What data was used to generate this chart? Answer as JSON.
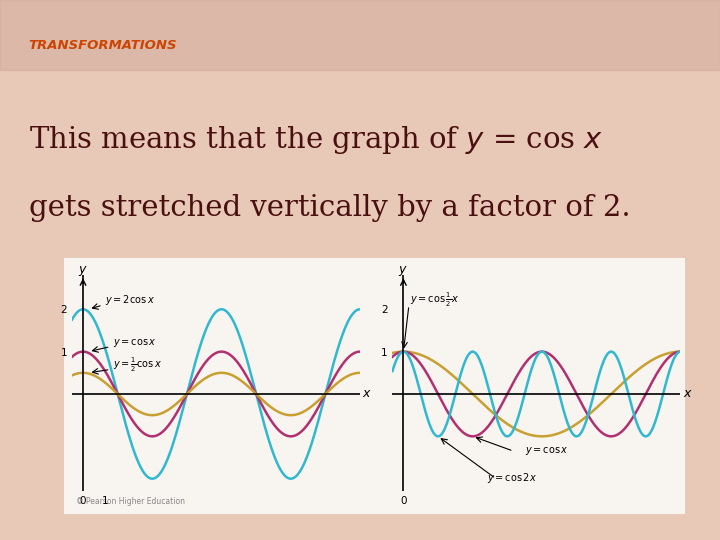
{
  "title": "TRANSFORMATIONS",
  "title_color": "#cc4400",
  "body_text_line1": "This means that the graph of ",
  "body_italic1": "y",
  "body_text_mid1": " = cos ",
  "body_italic2": "x",
  "body_text_line2": "gets stretched vertically by a factor of 2.",
  "bg_color": "#e8c9b8",
  "bg_color2": "#d4a898",
  "panel_bg": "#f5f0eb",
  "panel_border": "#c08060",
  "text_color": "#4a1010",
  "curve_cyan": "#30b8d0",
  "curve_magenta": "#b03070",
  "curve_gold": "#c8a030",
  "left_curves": {
    "amplitudes": [
      2.0,
      1.0,
      0.5
    ],
    "labels": [
      "y = 2 cos x",
      "y = cos x",
      "y = \\frac{1}{2} cos x"
    ],
    "colors": [
      "#30b8d0",
      "#b03070",
      "#c8a030"
    ]
  },
  "right_curves": {
    "b_values": [
      0.5,
      1.0,
      2.0
    ],
    "labels": [
      "y = \\cos \\frac{1}{2} x",
      "y = \\cos x",
      "y = \\cos 2x"
    ],
    "colors": [
      "#c8a030",
      "#b03070",
      "#30b8d0"
    ]
  }
}
